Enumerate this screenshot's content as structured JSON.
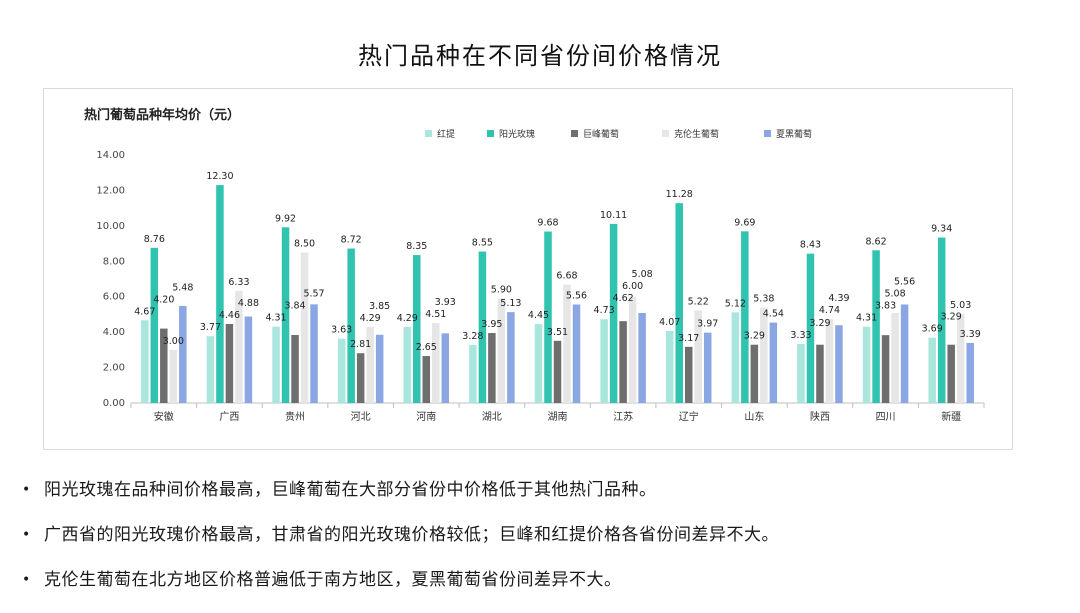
{
  "page": {
    "title": "热门品种在不同省份间价格情况"
  },
  "chart_data": {
    "type": "bar",
    "title": "热门葡萄品种年均价（元）",
    "ylim": [
      0,
      14
    ],
    "yticks": [
      "0.00",
      "2.00",
      "4.00",
      "6.00",
      "8.00",
      "10.00",
      "12.00",
      "14.00"
    ],
    "grid": false,
    "legend_position": "top",
    "categories": [
      "安徽",
      "广西",
      "贵州",
      "河北",
      "河南",
      "湖北",
      "湖南",
      "江苏",
      "辽宁",
      "山东",
      "陕西",
      "四川",
      "新疆"
    ],
    "series": [
      {
        "name": "红提",
        "color": "#a8e6de",
        "values": [
          4.67,
          3.77,
          4.31,
          3.63,
          4.29,
          3.28,
          4.45,
          4.73,
          4.07,
          5.12,
          3.33,
          4.31,
          3.69
        ],
        "labels": [
          "4.67",
          "3.77",
          "4.31",
          "3.63",
          "4.29",
          "3.28",
          "4.45",
          "4.73",
          "4.07",
          "5.12",
          "3.33",
          "4.31",
          "3.69"
        ]
      },
      {
        "name": "阳光玫瑰",
        "color": "#2fc3b0",
        "values": [
          8.76,
          12.3,
          9.92,
          8.72,
          8.35,
          8.55,
          9.68,
          10.11,
          11.28,
          9.69,
          8.43,
          8.62,
          9.34
        ],
        "labels": [
          "8.76",
          "12.30",
          "9.92",
          "8.72",
          "8.35",
          "8.55",
          "9.68",
          "10.11",
          "11.28",
          "9.69",
          "8.43",
          "8.62",
          "9.34"
        ]
      },
      {
        "name": "巨峰葡萄",
        "color": "#6e6e6e",
        "values": [
          4.2,
          4.46,
          3.84,
          2.81,
          2.65,
          3.95,
          3.51,
          4.62,
          3.17,
          3.29,
          3.29,
          3.83,
          3.29
        ],
        "labels": [
          "4.20",
          "4.46",
          "3.84",
          "2.81",
          "2.65",
          "3.95",
          "3.51",
          "4.62",
          "3.17",
          "3.29",
          "3.29",
          "3.83",
          "3.29"
        ]
      },
      {
        "name": "克伦生葡萄",
        "color": "#e6e6e6",
        "values": [
          3.0,
          6.33,
          8.5,
          4.29,
          4.51,
          5.9,
          6.68,
          6.0,
          5.22,
          5.38,
          4.74,
          5.08,
          5.03
        ],
        "labels": [
          "3.00",
          "6.33",
          "8.50",
          "4.29",
          "4.51",
          "5.90",
          "6.68",
          "6.00",
          "5.22",
          "5.38",
          "4.74",
          "5.08",
          "5.03"
        ]
      },
      {
        "name": "夏黑葡萄",
        "color": "#8aa6e3",
        "values": [
          5.48,
          4.88,
          5.57,
          3.85,
          3.93,
          5.13,
          5.56,
          5.08,
          3.97,
          4.54,
          4.39,
          5.56,
          3.39
        ],
        "labels": [
          "5.48",
          "4.88",
          "5.57",
          "3.85",
          "3.93",
          "5.13",
          "5.56",
          "5.08",
          "3.97",
          "4.54",
          "4.39",
          "5.56",
          "3.39"
        ]
      }
    ]
  },
  "bullets": [
    "阳光玫瑰在品种间价格最高，巨峰葡萄在大部分省份中价格低于其他热门品种。",
    "广西省的阳光玫瑰价格最高，甘肃省的阳光玫瑰价格较低；巨峰和红提价格各省份间差异不大。",
    "克伦生葡萄在北方地区价格普遍低于南方地区，夏黑葡萄省份间差异不大。"
  ],
  "bullet_marker": "•"
}
